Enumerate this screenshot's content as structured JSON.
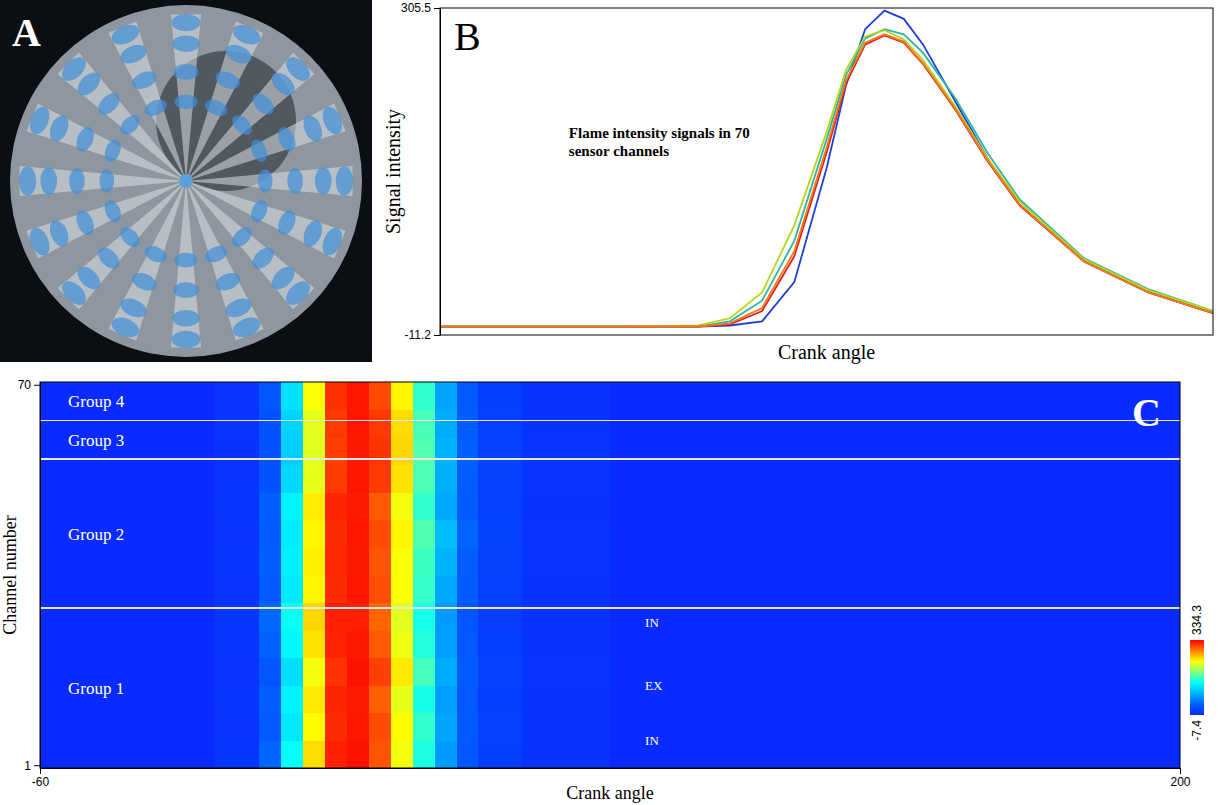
{
  "photo": {
    "panel_label": "A"
  },
  "chart_data": [
    {
      "type": "line",
      "panel_label": "B",
      "x_label": "Crank angle",
      "y_label": "Signal intensity",
      "annotations": [
        {
          "text": "Flame intensity signals in 70 sensor channels",
          "x": -40,
          "y": 180
        }
      ],
      "xlim": [
        -60,
        60
      ],
      "ylim": [
        -11.2,
        305.5
      ],
      "yticks": [
        -11.2,
        305.5
      ],
      "tick_labels": "y",
      "grid": false,
      "x": [
        -60,
        -30,
        -20,
        -15,
        -10,
        -5,
        0,
        3,
        6,
        9,
        12,
        15,
        20,
        25,
        30,
        40,
        50,
        60
      ],
      "series": [
        {
          "color": "#1f3fd8",
          "values": [
            -3,
            -3,
            -3,
            -2,
            2,
            40,
            150,
            230,
            285,
            303,
            295,
            270,
            215,
            160,
            115,
            60,
            30,
            10
          ]
        },
        {
          "color": "#2ab5a5",
          "values": [
            -3,
            -3,
            -3,
            2,
            22,
            80,
            178,
            240,
            276,
            285,
            280,
            262,
            218,
            165,
            120,
            63,
            33,
            12
          ]
        },
        {
          "color": "#b5d619",
          "values": [
            -3,
            -3,
            -2,
            5,
            30,
            95,
            185,
            245,
            278,
            284,
            275,
            255,
            210,
            160,
            118,
            62,
            32,
            12
          ]
        },
        {
          "color": "#e02020",
          "values": [
            -3,
            -3,
            -3,
            -1,
            12,
            65,
            165,
            232,
            270,
            279,
            272,
            251,
            207,
            157,
            114,
            60,
            30,
            10
          ]
        },
        {
          "color": "#f07a1a",
          "values": [
            -3,
            -3,
            -3,
            0,
            15,
            70,
            170,
            235,
            272,
            280,
            273,
            252,
            208,
            158,
            115,
            60,
            30,
            10
          ]
        }
      ]
    },
    {
      "type": "heatmap",
      "panel_label": "C",
      "x_label": "Crank angle",
      "y_label": "Channel number",
      "xlim": [
        -60,
        200
      ],
      "xticks": [
        -60,
        200
      ],
      "ylim": [
        0.5,
        70.5
      ],
      "yticks": [
        1,
        70
      ],
      "x_bins": [
        -60,
        -20,
        -10,
        -5,
        0,
        5,
        10,
        15,
        20,
        25,
        30,
        35,
        40,
        50,
        70,
        200
      ],
      "y_bins": [
        0.5,
        5.5,
        10.5,
        15.5,
        20.5,
        25.5,
        30.5,
        35.5,
        40.5,
        45.5,
        50.5,
        55.5,
        60.5,
        65.5,
        70.5
      ],
      "cells": [
        [
          -5,
          6,
          45,
          140,
          250,
          322,
          328,
          302,
          232,
          150,
          78,
          34,
          12,
          2,
          -5
        ],
        [
          -5,
          4,
          35,
          125,
          238,
          318,
          326,
          305,
          238,
          158,
          84,
          36,
          13,
          2,
          -5
        ],
        [
          -5,
          5,
          40,
          132,
          245,
          320,
          324,
          298,
          228,
          148,
          80,
          35,
          12,
          2,
          -5
        ],
        [
          -5,
          3,
          32,
          118,
          232,
          315,
          327,
          310,
          245,
          165,
          88,
          38,
          14,
          3,
          -5
        ],
        [
          -5,
          5,
          42,
          135,
          248,
          321,
          325,
          300,
          230,
          152,
          80,
          35,
          12,
          2,
          -5
        ],
        [
          -5,
          6,
          46,
          142,
          252,
          323,
          322,
          296,
          226,
          147,
          78,
          33,
          11,
          2,
          -5
        ],
        [
          -5,
          4,
          36,
          126,
          240,
          318,
          326,
          304,
          236,
          160,
          86,
          38,
          13,
          2,
          -5
        ],
        [
          -5,
          5,
          40,
          130,
          242,
          319,
          325,
          302,
          234,
          162,
          92,
          40,
          14,
          3,
          -5
        ],
        [
          -5,
          4,
          38,
          128,
          240,
          318,
          326,
          305,
          240,
          170,
          98,
          44,
          15,
          3,
          -5
        ],
        [
          -5,
          5,
          41,
          133,
          244,
          320,
          324,
          300,
          232,
          158,
          86,
          38,
          13,
          2,
          -5
        ],
        [
          -5,
          3,
          30,
          115,
          228,
          312,
          326,
          312,
          248,
          168,
          90,
          40,
          14,
          3,
          -5
        ],
        [
          -5,
          2,
          28,
          110,
          225,
          310,
          325,
          314,
          252,
          170,
          92,
          41,
          14,
          3,
          -5
        ],
        [
          -5,
          3,
          30,
          112,
          226,
          312,
          326,
          312,
          250,
          166,
          88,
          39,
          13,
          2,
          -5
        ],
        [
          -5,
          4,
          34,
          120,
          235,
          316,
          326,
          306,
          240,
          158,
          84,
          37,
          12,
          2,
          -5
        ]
      ],
      "colorbar": {
        "range": [
          -7.4,
          334.3
        ],
        "ticks": [
          -7.4,
          334.3
        ]
      },
      "groups": [
        {
          "label": "Group 1",
          "from": 0.5,
          "to": 29.5
        },
        {
          "label": "Group 2",
          "from": 29.5,
          "to": 56.5
        },
        {
          "label": "Group 3",
          "from": 56.5,
          "to": 63.5
        },
        {
          "label": "Group 4",
          "from": 63.5,
          "to": 70.5
        }
      ],
      "annotations": [
        {
          "text": "IN",
          "x": 78,
          "y": 27
        },
        {
          "text": "EX",
          "x": 78,
          "y": 15.5
        },
        {
          "text": "IN",
          "x": 78,
          "y": 5.5
        }
      ]
    }
  ]
}
